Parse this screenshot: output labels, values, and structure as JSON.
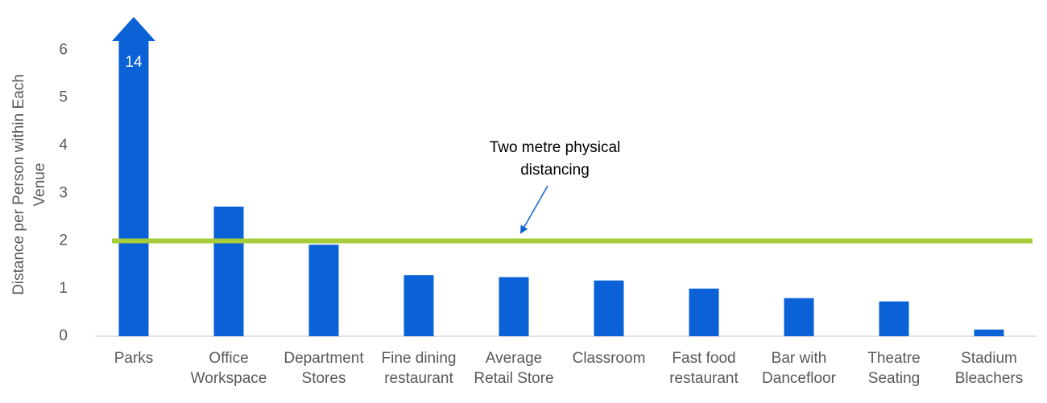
{
  "chart_data": {
    "type": "bar",
    "ylabel": "Distance per Person within Each\nVenue",
    "categories": [
      "Parks",
      "Office\nWorkspace",
      "Department\nStores",
      "Fine dining\nrestaurant",
      "Average\nRetail Store",
      "Classroom",
      "Fast food\nrestaurant",
      "Bar with\nDancefloor",
      "Theatre\nSeating",
      "Stadium\nBleachers"
    ],
    "values": [
      14,
      2.72,
      1.92,
      1.28,
      1.24,
      1.17,
      1.0,
      0.8,
      0.73,
      0.14
    ],
    "value_labels": [
      "14",
      null,
      null,
      null,
      null,
      null,
      null,
      null,
      null,
      null
    ],
    "color": "#0b62d6",
    "ylim": [
      0,
      6.7
    ],
    "yticks": [
      0,
      1,
      2,
      3,
      4,
      5,
      6
    ],
    "reference_line": {
      "value": 2,
      "color": "#a6cc3a"
    },
    "annotation": "Two metre physical\ndistancing"
  }
}
